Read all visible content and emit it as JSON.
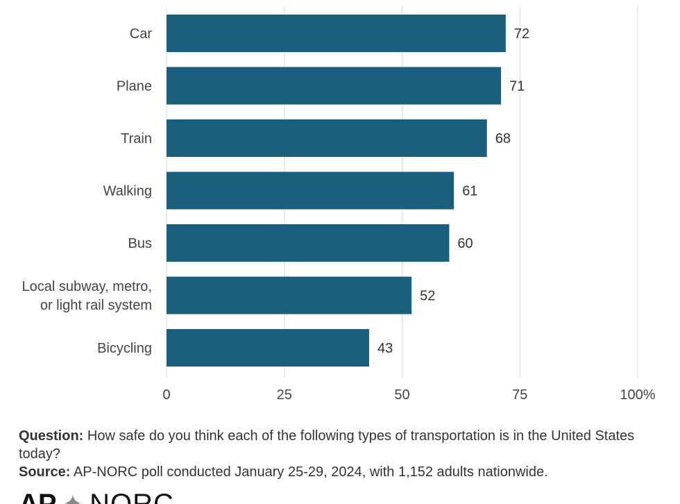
{
  "chart_data": {
    "type": "bar",
    "orientation": "horizontal",
    "categories": [
      "Car",
      "Plane",
      "Train",
      "Walking",
      "Bus",
      "Local subway, metro, or light rail system",
      "Bicycling"
    ],
    "category_lines": [
      [
        "Car"
      ],
      [
        "Plane"
      ],
      [
        "Train"
      ],
      [
        "Walking"
      ],
      [
        "Bus"
      ],
      [
        "Local subway, metro,",
        "or light rail system"
      ],
      [
        "Bicycling"
      ]
    ],
    "values": [
      72,
      71,
      68,
      61,
      60,
      52,
      43
    ],
    "xlim": [
      0,
      100
    ],
    "xticks": [
      "0",
      "25",
      "50",
      "75",
      "100%"
    ],
    "grid": true,
    "bar_color": "#1a5f7e",
    "grid_color": "#d9d9d9"
  },
  "notes": {
    "question_label": "Question:",
    "question_text": "How safe do you think each of the following types of transportation is in the United States today?",
    "source_label": "Source:",
    "source_text": "AP-NORC poll conducted January 25-29, 2024, with 1,152 adults nationwide."
  },
  "logo": {
    "ap": "AP",
    "norc": "NORC"
  }
}
